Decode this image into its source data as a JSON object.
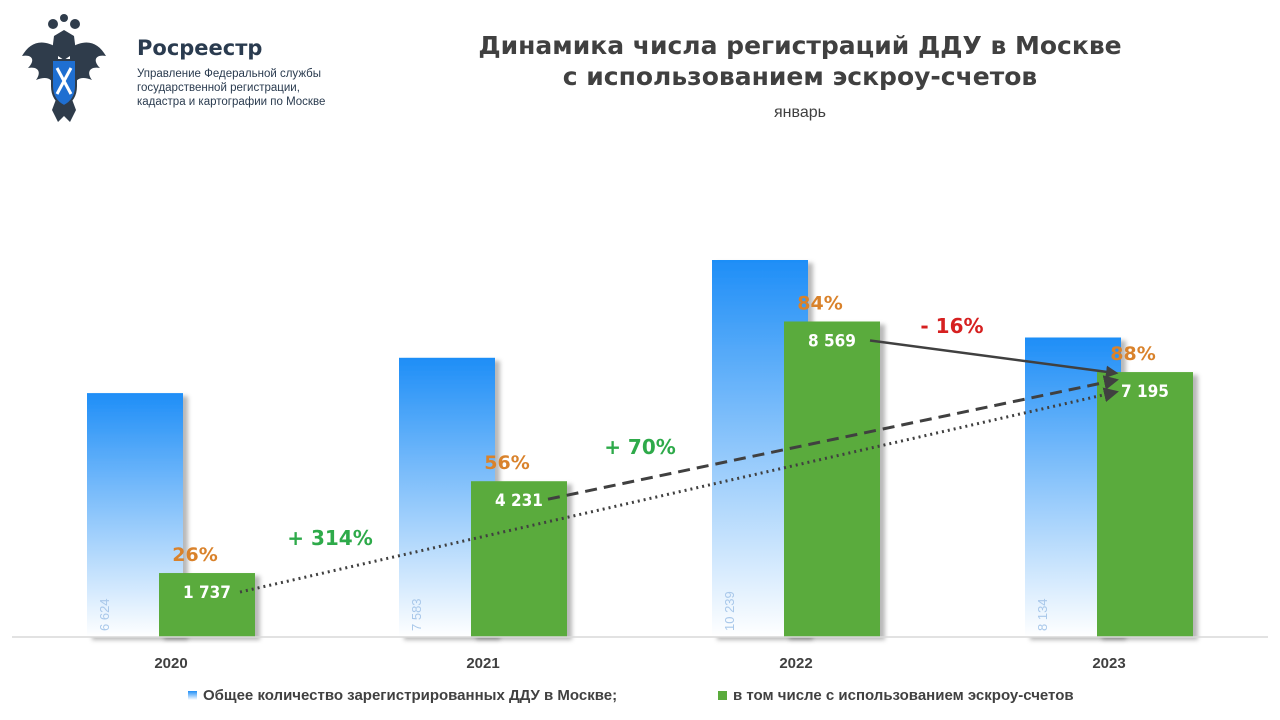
{
  "header": {
    "org_name": "Росреестр",
    "org_sub": [
      "Управление Федеральной службы",
      "государственной регистрации,",
      "кадастра и картографии по Москве"
    ],
    "title_line1": "Динамика числа регистраций ДДУ в Москве",
    "title_line2": "с использованием эскроу-счетов",
    "subtitle": "январь"
  },
  "colors": {
    "total_top": "#1e8ef7",
    "total_bottom": "#ffffff",
    "escrow": "#5aab3c",
    "share": "#d9822b",
    "growth_pos": "#2eaa4a",
    "growth_neg": "#d62020",
    "arrow": "#404040",
    "axis": "#d9d9d9",
    "total_label": "#a9c8ea"
  },
  "chart_data": {
    "type": "bar",
    "title": "Динамика числа регистраций ДДУ в Москве с использованием эскроу-счетов",
    "subtitle": "январь",
    "categories": [
      "2020",
      "2021",
      "2022",
      "2023"
    ],
    "series": [
      {
        "name": "Общее количество зарегистрированных ДДУ в Москве;",
        "values": [
          6624,
          7583,
          10239,
          8134
        ],
        "labels": [
          "6 624",
          "7 583",
          "10 239",
          "8 134"
        ]
      },
      {
        "name": "в том числе с использованием эскроу-счетов",
        "values": [
          1737,
          4231,
          8569,
          7195
        ],
        "labels": [
          "1 737",
          "4 231",
          "8 569",
          "7 195"
        ]
      }
    ],
    "share_labels": [
      "26%",
      "56%",
      "84%",
      "88%"
    ],
    "annotations": [
      {
        "text": "+ 314%",
        "from": "2020",
        "to": "2023",
        "style": "dotted"
      },
      {
        "text": "+ 70%",
        "from": "2021",
        "to": "2023",
        "style": "dashed"
      },
      {
        "text": "- 16%",
        "from": "2022",
        "to": "2023",
        "style": "solid"
      }
    ],
    "ylim": [
      0,
      10239
    ],
    "grid": false,
    "legend_position": "bottom"
  }
}
